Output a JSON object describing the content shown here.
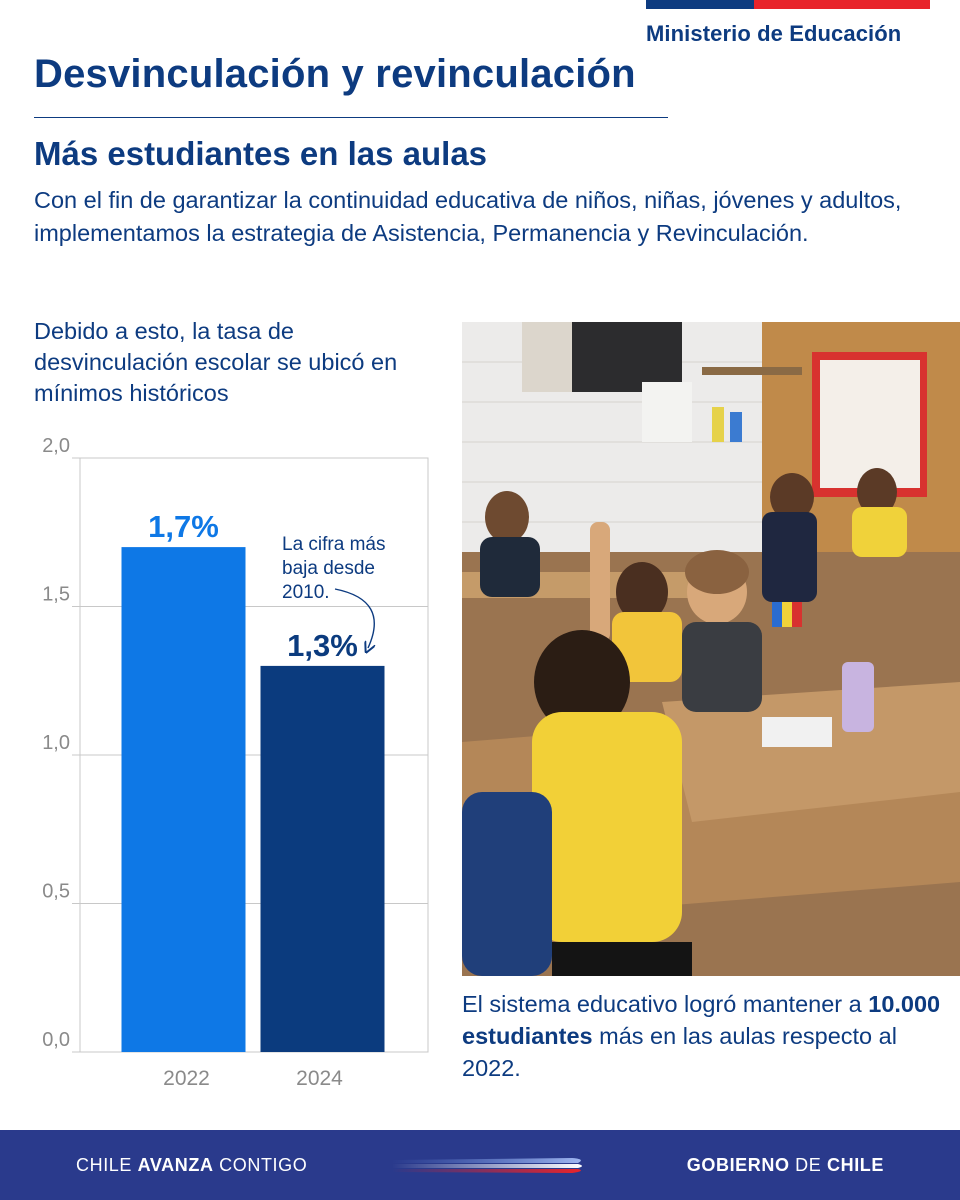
{
  "header": {
    "ministry": "Ministerio de Educación",
    "title": "Desvinculación y revinculación",
    "subtitle": "Más estudiantes en las aulas",
    "intro": "Con el fin de garantizar la continuidad educativa de niños, niñas, jóvenes y adultos, implementamos la estrategia de Asistencia, Permanencia y Revinculación."
  },
  "chart_caption": "Debido a esto, la tasa de desvinculación escolar se ubicó en mínimos históricos",
  "chart_data": {
    "type": "bar",
    "title": "",
    "xlabel": "",
    "ylabel": "",
    "categories": [
      "2022",
      "2024"
    ],
    "values": [
      1.7,
      1.3
    ],
    "value_labels": [
      "1,7%",
      "1,3%"
    ],
    "ylim": [
      0,
      2.0
    ],
    "yticks": [
      0,
      0.5,
      1.0,
      1.5,
      2.0
    ],
    "ytick_labels": [
      "0,0",
      "0,5",
      "1,0",
      "1,5",
      "2,0"
    ],
    "grid": true,
    "annotation": "La cifra más baja desde 2010.",
    "colors": [
      "#0e78e6",
      "#0b3b7e"
    ]
  },
  "photo_caption": {
    "before": "El sistema educativo logró mantener a ",
    "bold": "10.000 estudiantes",
    "after": " más en las aulas respecto al 2022."
  },
  "footer": {
    "slogan_pre": "CHILE ",
    "slogan_bold": "AVANZA",
    "slogan_post": " CONTIGO",
    "gov_bold1": "GOBIERNO",
    "gov_mid": " DE ",
    "gov_bold2": "CHILE"
  },
  "colors": {
    "navy": "#0d3b80",
    "bar_2022": "#0e78e6",
    "bar_2024": "#0b3b7e",
    "footer_bg": "#2a3a8c",
    "flag_red": "#e8242b"
  }
}
